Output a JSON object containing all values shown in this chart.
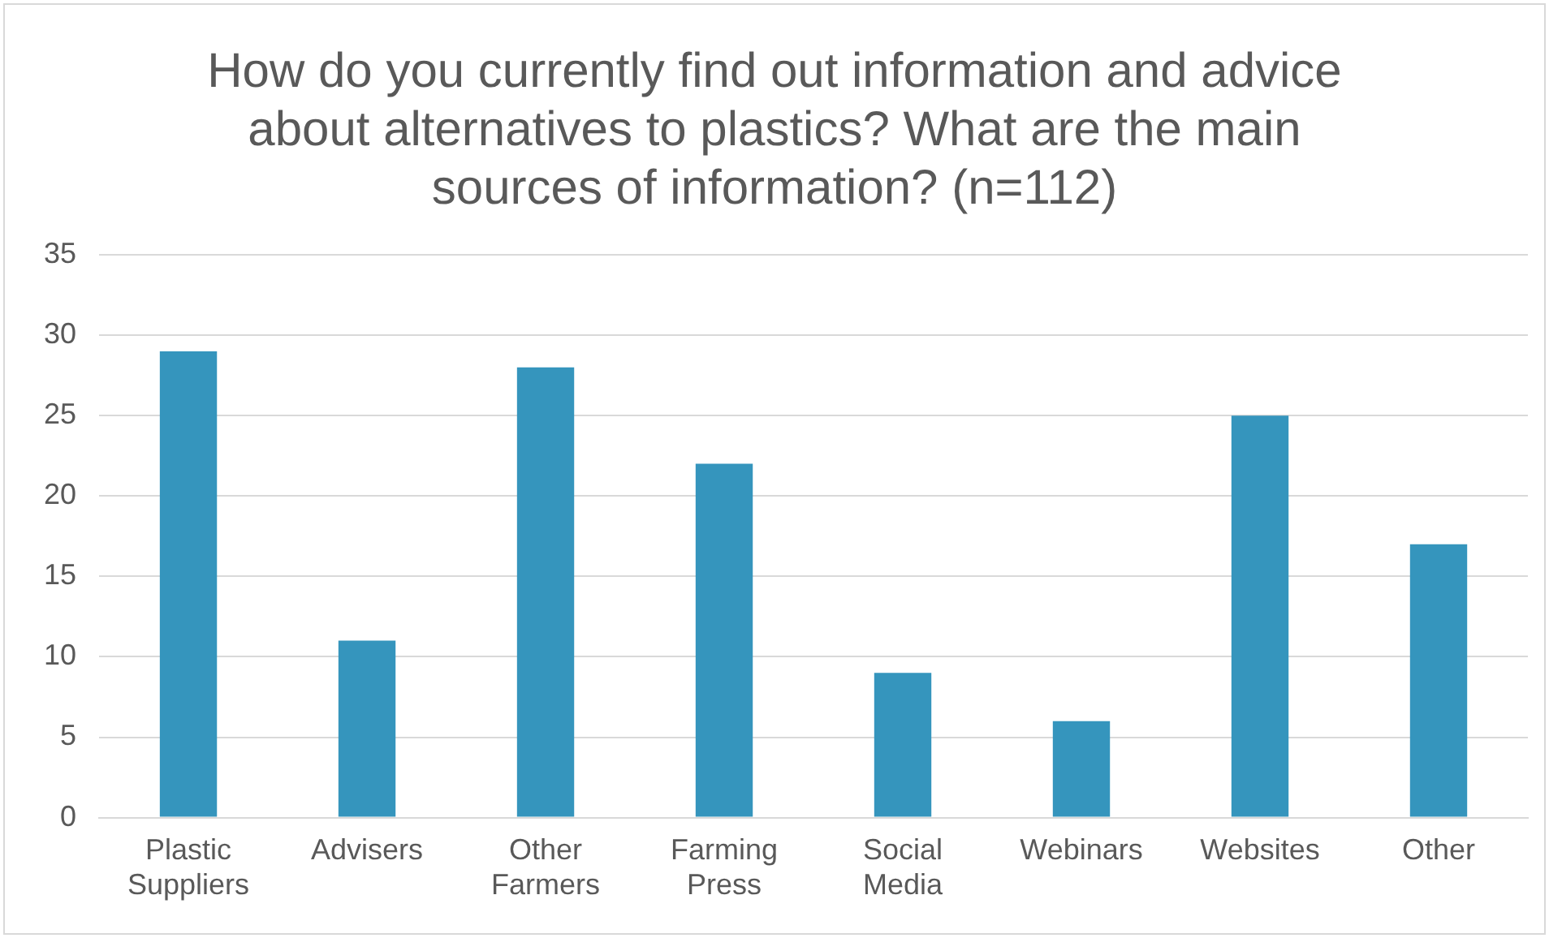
{
  "chart_data": {
    "type": "bar",
    "title": "How do you currently find out information and advice about alternatives to plastics? What are the main sources of information? (n=112)",
    "categories": [
      "Plastic Suppliers",
      "Advisers",
      "Other Farmers",
      "Farming Press",
      "Social Media",
      "Webinars",
      "Websites",
      "Other"
    ],
    "values": [
      29,
      11,
      28,
      22,
      9,
      6,
      25,
      17
    ],
    "color": "#3595bd",
    "ylim": [
      0,
      35
    ],
    "yticks": [
      0,
      5,
      10,
      15,
      20,
      25,
      30,
      35
    ],
    "grid": "y"
  }
}
